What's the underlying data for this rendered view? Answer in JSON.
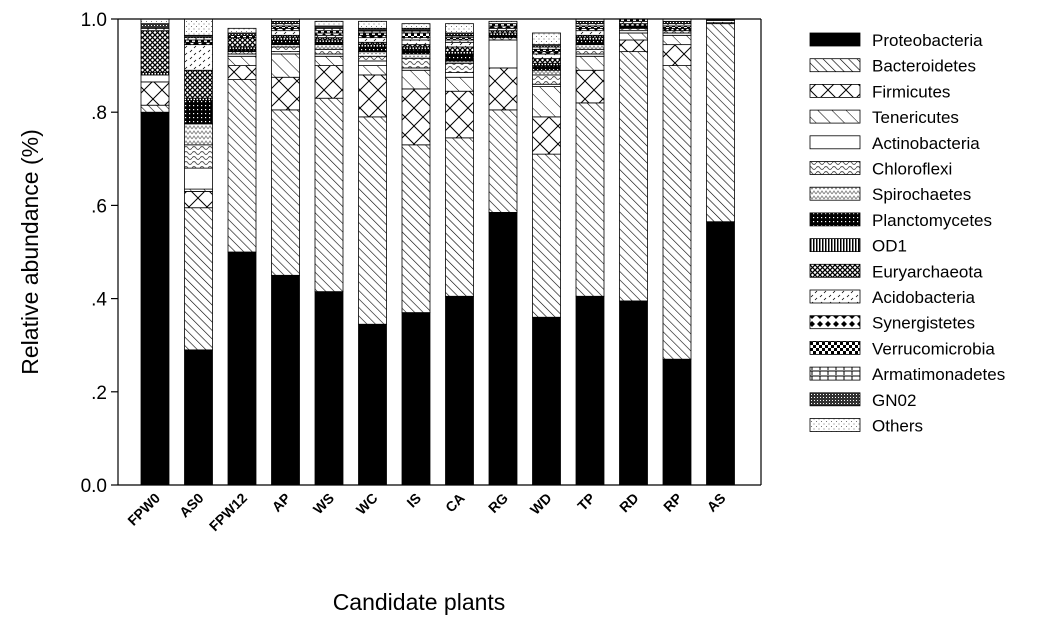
{
  "chart_data": {
    "type": "bar",
    "stacked": true,
    "xlabel": "Candidate plants",
    "ylabel": "Relative abundance (%)",
    "ylim": [
      0,
      1
    ],
    "yticks": [
      0,
      0.2,
      0.4,
      0.6,
      0.8,
      1.0
    ],
    "ytick_labels": [
      "0.0",
      ".2",
      ".4",
      ".6",
      ".8",
      "1.0"
    ],
    "legend_position": "right",
    "grid": false,
    "categories": [
      "FPW0",
      "AS0",
      "FPW12",
      "AP",
      "WS",
      "WC",
      "IS",
      "CA",
      "RG",
      "WD",
      "TP",
      "RD",
      "RP",
      "AS"
    ],
    "series": [
      {
        "name": "Proteobacteria",
        "pattern": "solid",
        "values": [
          0.8,
          0.29,
          0.5,
          0.45,
          0.415,
          0.345,
          0.37,
          0.405,
          0.585,
          0.36,
          0.405,
          0.395,
          0.27,
          0.565
        ]
      },
      {
        "name": "Bacteroidetes",
        "pattern": "diag",
        "values": [
          0.015,
          0.305,
          0.37,
          0.355,
          0.415,
          0.445,
          0.36,
          0.34,
          0.22,
          0.35,
          0.415,
          0.535,
          0.63,
          0.425
        ]
      },
      {
        "name": "Firmicutes",
        "pattern": "xhatch",
        "values": [
          0.05,
          0.035,
          0.03,
          0.07,
          0.07,
          0.09,
          0.12,
          0.1,
          0.09,
          0.08,
          0.07,
          0.025,
          0.045,
          0.0
        ]
      },
      {
        "name": "Tenericutes",
        "pattern": "wdiag",
        "values": [
          0.0,
          0.005,
          0.02,
          0.05,
          0.02,
          0.02,
          0.04,
          0.03,
          0.0,
          0.065,
          0.03,
          0.015,
          0.02,
          0.002
        ]
      },
      {
        "name": "Actinobacteria",
        "pattern": "white",
        "values": [
          0.015,
          0.045,
          0.005,
          0.005,
          0.005,
          0.01,
          0.005,
          0.01,
          0.06,
          0.005,
          0.005,
          0.005,
          0.005,
          0.0
        ]
      },
      {
        "name": "Chloroflexi",
        "pattern": "wave",
        "values": [
          0.0,
          0.05,
          0.005,
          0.01,
          0.01,
          0.01,
          0.02,
          0.02,
          0.005,
          0.02,
          0.01,
          0.005,
          0.005,
          0.0
        ]
      },
      {
        "name": "Spirochaetes",
        "pattern": "zigzag",
        "values": [
          0.0,
          0.045,
          0.0,
          0.005,
          0.01,
          0.01,
          0.01,
          0.005,
          0.0,
          0.01,
          0.01,
          0.0,
          0.0,
          0.0
        ]
      },
      {
        "name": "Planctomycetes",
        "pattern": "dots",
        "values": [
          0.0,
          0.05,
          0.005,
          0.01,
          0.005,
          0.01,
          0.01,
          0.015,
          0.005,
          0.01,
          0.01,
          0.005,
          0.0,
          0.0
        ]
      },
      {
        "name": "OD1",
        "pattern": "vlines",
        "values": [
          0.005,
          0.005,
          0.005,
          0.005,
          0.005,
          0.005,
          0.005,
          0.005,
          0.005,
          0.005,
          0.005,
          0.0,
          0.0,
          0.0
        ]
      },
      {
        "name": "Euryarchaeota",
        "pattern": "grid",
        "values": [
          0.09,
          0.06,
          0.02,
          0.005,
          0.005,
          0.005,
          0.005,
          0.01,
          0.005,
          0.01,
          0.005,
          0.005,
          0.005,
          0.0
        ]
      },
      {
        "name": "Acidobacteria",
        "pattern": "sparse",
        "values": [
          0.0,
          0.055,
          0.0,
          0.01,
          0.005,
          0.01,
          0.01,
          0.01,
          0.005,
          0.01,
          0.01,
          0.005,
          0.0,
          0.005
        ]
      },
      {
        "name": "Synergistetes",
        "pattern": "diamonds",
        "values": [
          0.0,
          0.005,
          0.0,
          0.005,
          0.005,
          0.005,
          0.005,
          0.005,
          0.005,
          0.005,
          0.005,
          0.0,
          0.0,
          0.0
        ]
      },
      {
        "name": "Verrucomicrobia",
        "pattern": "checker",
        "values": [
          0.0,
          0.005,
          0.005,
          0.005,
          0.005,
          0.005,
          0.01,
          0.005,
          0.005,
          0.005,
          0.005,
          0.005,
          0.005,
          0.0
        ]
      },
      {
        "name": "Armatimonadetes",
        "pattern": "hlines",
        "values": [
          0.005,
          0.005,
          0.0,
          0.005,
          0.005,
          0.005,
          0.005,
          0.005,
          0.0,
          0.005,
          0.005,
          0.005,
          0.005,
          0.001
        ]
      },
      {
        "name": "GN02",
        "pattern": "dense",
        "values": [
          0.01,
          0.005,
          0.005,
          0.005,
          0.005,
          0.005,
          0.005,
          0.005,
          0.0,
          0.005,
          0.005,
          0.005,
          0.005,
          0.0
        ]
      },
      {
        "name": "Others",
        "pattern": "light",
        "values": [
          0.01,
          0.035,
          0.01,
          0.01,
          0.01,
          0.015,
          0.01,
          0.02,
          0.005,
          0.025,
          0.005,
          0.005,
          0.005,
          0.002
        ]
      }
    ]
  }
}
